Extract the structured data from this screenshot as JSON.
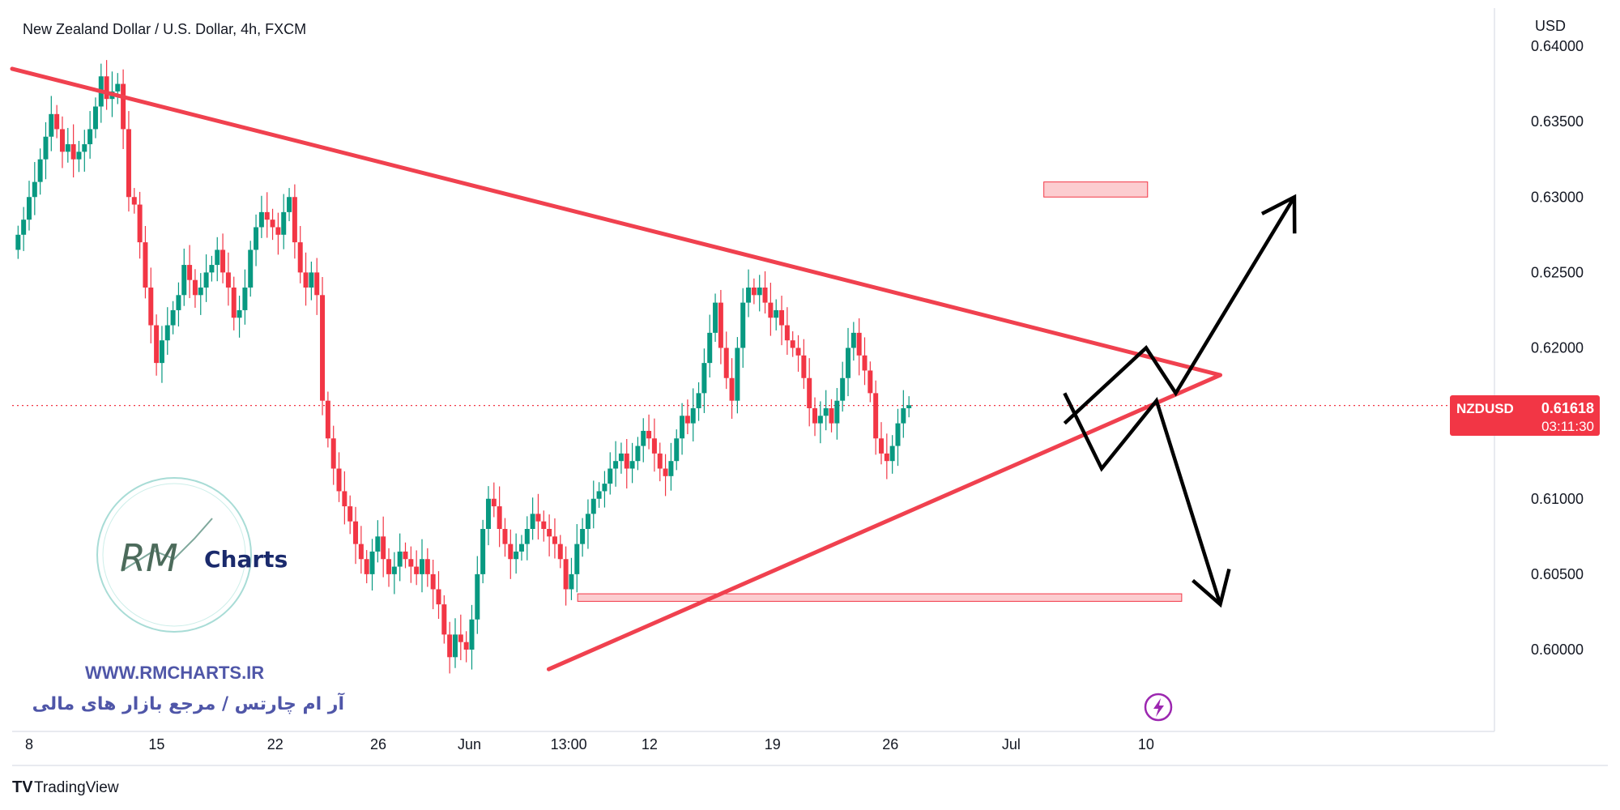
{
  "header": {
    "title": "New Zealand Dollar / U.S. Dollar, 4h, FXCM"
  },
  "price_axis": {
    "currency": "USD"
  },
  "price_tag": {
    "symbol": "NZDUSD",
    "price": "0.61618",
    "countdown": "03:11:30"
  },
  "watermark": {
    "logo_script": "RM",
    "logo_word": "Charts",
    "website": "WWW.RMCHARTS.IR",
    "tagline": "آر ام چارتس / مرجع بازار های مالی"
  },
  "footer": {
    "brand": "TradingView",
    "brand_mark": "TV"
  },
  "chart_data": {
    "type": "candlestick",
    "symbol": "NZDUSD",
    "timeframe": "4h",
    "ylim": [
      0.5965,
      0.641
    ],
    "y_ticks": [
      "0.64000",
      "0.63500",
      "0.63000",
      "0.62500",
      "0.62000",
      "0.61000",
      "0.60500",
      "0.60000"
    ],
    "x_ticks": [
      "8",
      "15",
      "22",
      "26",
      "Jun",
      "13:00",
      "12",
      "19",
      "26",
      "Jul",
      "10"
    ],
    "last_price": 0.61618,
    "candles_close": [
      0.6275,
      0.6285,
      0.63,
      0.631,
      0.6325,
      0.634,
      0.6355,
      0.6345,
      0.633,
      0.6335,
      0.6325,
      0.633,
      0.6335,
      0.6345,
      0.636,
      0.638,
      0.6365,
      0.637,
      0.6375,
      0.6345,
      0.63,
      0.6295,
      0.627,
      0.624,
      0.6215,
      0.619,
      0.6205,
      0.6215,
      0.6225,
      0.6235,
      0.6255,
      0.6245,
      0.6235,
      0.624,
      0.625,
      0.6255,
      0.6265,
      0.625,
      0.624,
      0.622,
      0.6225,
      0.624,
      0.6265,
      0.628,
      0.629,
      0.6285,
      0.628,
      0.6275,
      0.629,
      0.63,
      0.627,
      0.625,
      0.624,
      0.625,
      0.6235,
      0.6165,
      0.614,
      0.612,
      0.6105,
      0.6095,
      0.6085,
      0.607,
      0.606,
      0.605,
      0.6065,
      0.6075,
      0.606,
      0.605,
      0.6055,
      0.6065,
      0.606,
      0.6055,
      0.605,
      0.606,
      0.605,
      0.604,
      0.603,
      0.601,
      0.5995,
      0.601,
      0.6005,
      0.6,
      0.602,
      0.605,
      0.608,
      0.61,
      0.6095,
      0.608,
      0.607,
      0.606,
      0.6065,
      0.607,
      0.608,
      0.609,
      0.6085,
      0.608,
      0.6075,
      0.607,
      0.606,
      0.604,
      0.605,
      0.607,
      0.608,
      0.609,
      0.61,
      0.6105,
      0.611,
      0.612,
      0.6125,
      0.613,
      0.612,
      0.6125,
      0.6135,
      0.6145,
      0.614,
      0.613,
      0.612,
      0.6115,
      0.6125,
      0.614,
      0.6155,
      0.615,
      0.616,
      0.617,
      0.619,
      0.621,
      0.623,
      0.62,
      0.618,
      0.6165,
      0.62,
      0.623,
      0.624,
      0.6235,
      0.624,
      0.623,
      0.622,
      0.6225,
      0.6215,
      0.6205,
      0.62,
      0.6195,
      0.618,
      0.616,
      0.615,
      0.6155,
      0.616,
      0.615,
      0.6165,
      0.618,
      0.62,
      0.621,
      0.6195,
      0.6185,
      0.617,
      0.614,
      0.613,
      0.6125,
      0.6135,
      0.615,
      0.616,
      0.6162
    ],
    "annotations": {
      "descending_trendline": [
        [
          0,
          0.6385
        ],
        [
          0.815,
          0.6182
        ]
      ],
      "ascending_trendline": [
        [
          0.362,
          0.5987
        ],
        [
          0.815,
          0.6182
        ]
      ],
      "support_zone": [
        0.6032,
        0.6037
      ],
      "target_zone": [
        0.63,
        0.631
      ],
      "bullish_scenario_path": [
        [
          0.71,
          0.615
        ],
        [
          0.765,
          0.62
        ],
        [
          0.785,
          0.617
        ],
        [
          0.865,
          0.63
        ]
      ],
      "bearish_scenario_path": [
        [
          0.71,
          0.617
        ],
        [
          0.735,
          0.612
        ],
        [
          0.772,
          0.6165
        ],
        [
          0.815,
          0.603
        ]
      ]
    }
  }
}
